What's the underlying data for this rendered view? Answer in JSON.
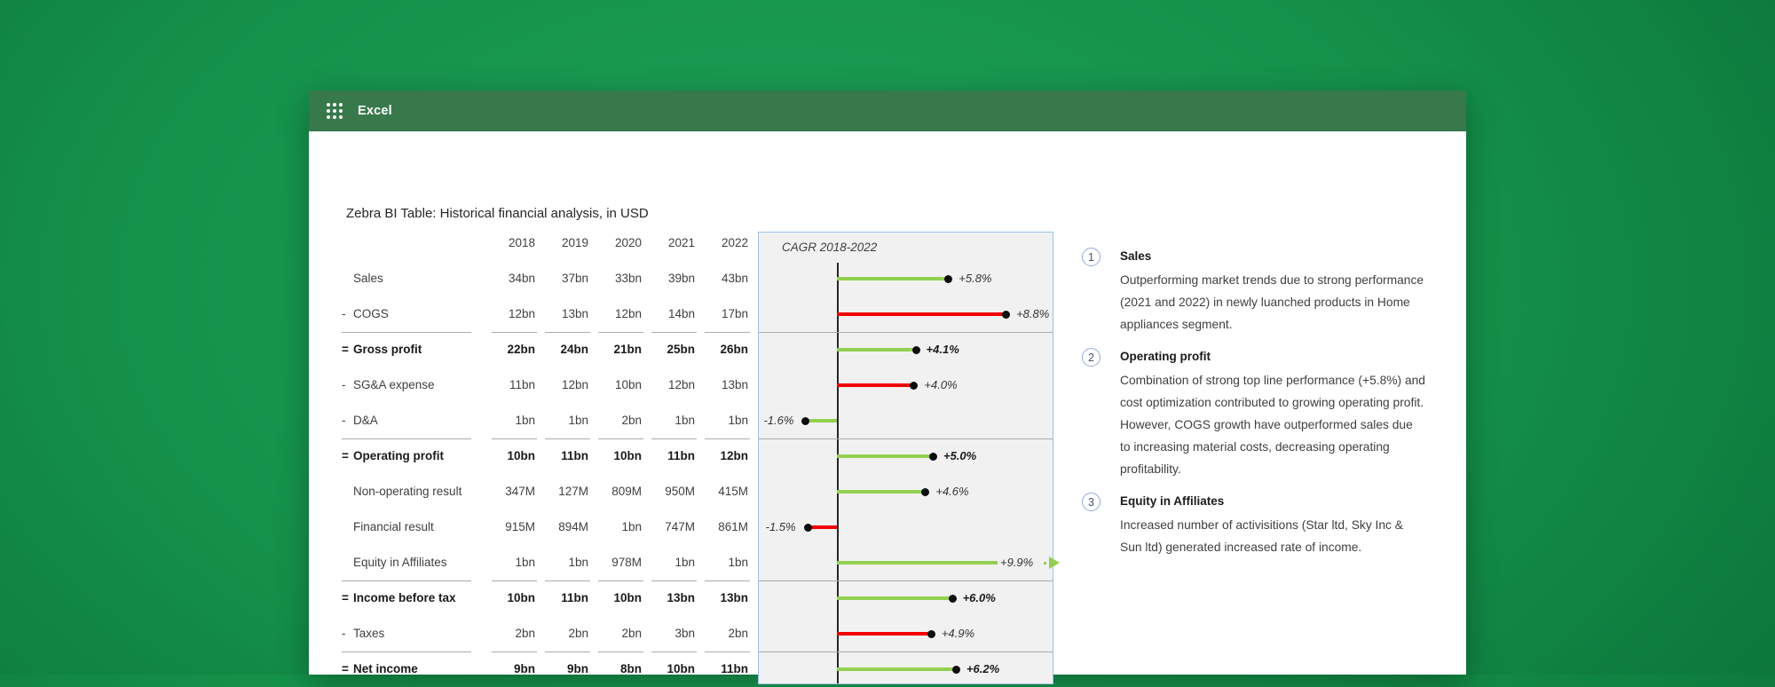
{
  "window": {
    "app_title": "Excel"
  },
  "report": {
    "title": "Zebra BI Table: Historical financial analysis, in USD"
  },
  "colors": {
    "background_green": "#149049",
    "titlebar_green": "#37794b",
    "favorable_green": "#92d050",
    "unfavorable_red": "#f20000",
    "chart_border_blue": "#9dc3e6",
    "chart_background": "#f1f1f1",
    "annotation_circle_blue": "#8faadc",
    "text_dark": "#404040"
  },
  "table": {
    "year_columns": [
      "2018",
      "2019",
      "2020",
      "2021",
      "2022"
    ],
    "rows": [
      {
        "prefix": "",
        "label": "Sales",
        "values": [
          "34bn",
          "37bn",
          "33bn",
          "39bn",
          "43bn"
        ],
        "bold": false,
        "sep": false,
        "cagr": {
          "label": "+5.8%",
          "value": 5.8,
          "color": "green",
          "bold": false,
          "overflow": false
        }
      },
      {
        "prefix": "-",
        "label": "COGS",
        "values": [
          "12bn",
          "13bn",
          "12bn",
          "14bn",
          "17bn"
        ],
        "bold": false,
        "sep": false,
        "cagr": {
          "label": "+8.8%",
          "value": 8.8,
          "color": "red",
          "bold": false,
          "overflow": false
        }
      },
      {
        "prefix": "=",
        "label": "Gross profit",
        "values": [
          "22bn",
          "24bn",
          "21bn",
          "25bn",
          "26bn"
        ],
        "bold": true,
        "sep": true,
        "cagr": {
          "label": "+4.1%",
          "value": 4.1,
          "color": "green",
          "bold": true,
          "overflow": false
        }
      },
      {
        "prefix": "-",
        "label": "SG&A expense",
        "values": [
          "11bn",
          "12bn",
          "10bn",
          "12bn",
          "13bn"
        ],
        "bold": false,
        "sep": false,
        "cagr": {
          "label": "+4.0%",
          "value": 4.0,
          "color": "red",
          "bold": false,
          "overflow": false
        }
      },
      {
        "prefix": "-",
        "label": "D&A",
        "values": [
          "1bn",
          "1bn",
          "2bn",
          "1bn",
          "1bn"
        ],
        "bold": false,
        "sep": false,
        "cagr": {
          "label": "-1.6%",
          "value": -1.6,
          "color": "green",
          "bold": false,
          "overflow": false
        }
      },
      {
        "prefix": "=",
        "label": "Operating profit",
        "values": [
          "10bn",
          "11bn",
          "10bn",
          "11bn",
          "12bn"
        ],
        "bold": true,
        "sep": true,
        "cagr": {
          "label": "+5.0%",
          "value": 5.0,
          "color": "green",
          "bold": true,
          "overflow": false
        }
      },
      {
        "prefix": "",
        "label": "Non-operating result",
        "values": [
          "347M",
          "127M",
          "809M",
          "950M",
          "415M"
        ],
        "bold": false,
        "sep": false,
        "cagr": {
          "label": "+4.6%",
          "value": 4.6,
          "color": "green",
          "bold": false,
          "overflow": false
        }
      },
      {
        "prefix": "",
        "label": "Financial result",
        "values": [
          "915M",
          "894M",
          "1bn",
          "747M",
          "861M"
        ],
        "bold": false,
        "sep": false,
        "cagr": {
          "label": "-1.5%",
          "value": -1.5,
          "color": "red",
          "bold": false,
          "overflow": false
        }
      },
      {
        "prefix": "",
        "label": "Equity in Affiliates",
        "values": [
          "1bn",
          "1bn",
          "978M",
          "1bn",
          "1bn"
        ],
        "bold": false,
        "sep": false,
        "cagr": {
          "label": "+9.9%",
          "value": 9.9,
          "color": "green",
          "bold": false,
          "overflow": true
        }
      },
      {
        "prefix": "=",
        "label": "Income before tax",
        "values": [
          "10bn",
          "11bn",
          "10bn",
          "13bn",
          "13bn"
        ],
        "bold": true,
        "sep": true,
        "cagr": {
          "label": "+6.0%",
          "value": 6.0,
          "color": "green",
          "bold": true,
          "overflow": false
        }
      },
      {
        "prefix": "-",
        "label": "Taxes",
        "values": [
          "2bn",
          "2bn",
          "2bn",
          "3bn",
          "2bn"
        ],
        "bold": false,
        "sep": false,
        "cagr": {
          "label": "+4.9%",
          "value": 4.9,
          "color": "red",
          "bold": false,
          "overflow": false
        }
      },
      {
        "prefix": "=",
        "label": "Net income",
        "values": [
          "9bn",
          "9bn",
          "8bn",
          "10bn",
          "11bn"
        ],
        "bold": true,
        "sep": true,
        "cagr": {
          "label": "+6.2%",
          "value": 6.2,
          "color": "green",
          "bold": true,
          "overflow": false
        }
      }
    ]
  },
  "chart_data": {
    "type": "bar",
    "orientation": "horizontal",
    "title": "CAGR 2018-2022",
    "unit": "%",
    "categories": [
      "Sales",
      "COGS",
      "Gross profit",
      "SG&A expense",
      "D&A",
      "Operating profit",
      "Non-operating result",
      "Financial result",
      "Equity in Affiliates",
      "Income before tax",
      "Taxes",
      "Net income"
    ],
    "values": [
      5.8,
      8.8,
      4.1,
      4.0,
      -1.6,
      5.0,
      4.6,
      -1.5,
      9.9,
      6.0,
      4.9,
      6.2
    ],
    "data_labels": [
      "+5.8%",
      "+8.8%",
      "+4.1%",
      "+4.0%",
      "-1.6%",
      "+5.0%",
      "+4.6%",
      "-1.5%",
      "+9.9%",
      "+6.0%",
      "+4.9%",
      "+6.2%"
    ],
    "bar_colors": [
      "#92d050",
      "#f20000",
      "#92d050",
      "#f20000",
      "#92d050",
      "#92d050",
      "#92d050",
      "#f20000",
      "#92d050",
      "#92d050",
      "#f20000",
      "#92d050"
    ],
    "xlim": [
      -2,
      10.5
    ],
    "grid": false,
    "legend": false
  },
  "annotations": [
    {
      "number": "1",
      "title": "Sales",
      "body": "Outperforming market trends due to strong performance (2021 and 2022) in newly luanched products in Home appliances segment."
    },
    {
      "number": "2",
      "title": "Operating profit",
      "body": "Combination of strong top line performance (+5.8%) and cost optimization contributed to growing operating profit. However, COGS growth have outperformed sales due to increasing material costs, decreasing operating profitability."
    },
    {
      "number": "3",
      "title": "Equity in Affiliates",
      "body": "Increased number of activisitions (Star ltd, Sky Inc & Sun ltd) generated increased rate of income."
    }
  ]
}
